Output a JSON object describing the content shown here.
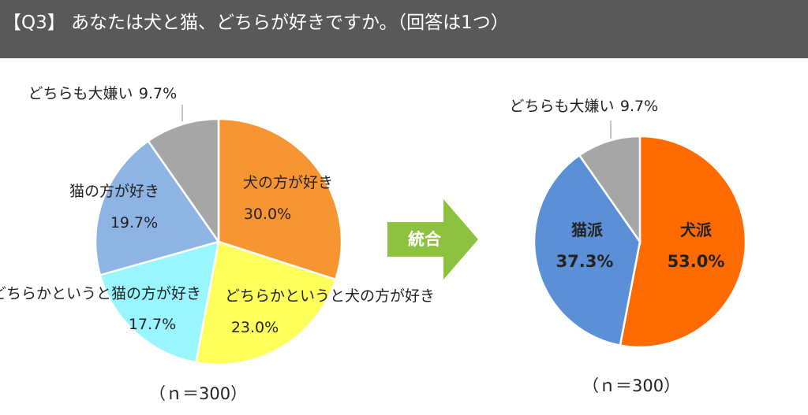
{
  "header": {
    "title": "【Q3】 あなたは犬と猫、どちらが好きですか。（回答は1つ）"
  },
  "colors": {
    "header_bg": "#595959",
    "arrow": "#8DC13F",
    "left": [
      "#F79533",
      "#FFFF5C",
      "#99F5FF",
      "#8EB4E3",
      "#A6A6A6"
    ],
    "right": [
      "#FF6B00",
      "#5B8FD6",
      "#A6A6A6"
    ]
  },
  "arrow": {
    "label": "統合"
  },
  "chart_data": [
    {
      "type": "pie",
      "slices": [
        {
          "label": "犬の方が好き",
          "value": 30.0,
          "value_label": "30.0%"
        },
        {
          "label": "どちらかというと犬の方が好き",
          "value": 23.0,
          "value_label": "23.0%"
        },
        {
          "label": "どちらかというと猫の方が好き",
          "value": 17.7,
          "value_label": "17.7%"
        },
        {
          "label": "猫の方が好き",
          "value": 19.7,
          "value_label": "19.7%"
        },
        {
          "label": "どちらも大嫌い",
          "value": 9.7,
          "value_label": "9.7%"
        }
      ],
      "note": "（ｎ＝300）"
    },
    {
      "type": "pie",
      "slices": [
        {
          "label": "犬派",
          "value": 53.0,
          "value_label": "53.0%"
        },
        {
          "label": "猫派",
          "value": 37.3,
          "value_label": "37.3%"
        },
        {
          "label": "どちらも大嫌い",
          "value": 9.7,
          "value_label": "9.7%"
        }
      ],
      "note": "（ｎ＝300）"
    }
  ]
}
